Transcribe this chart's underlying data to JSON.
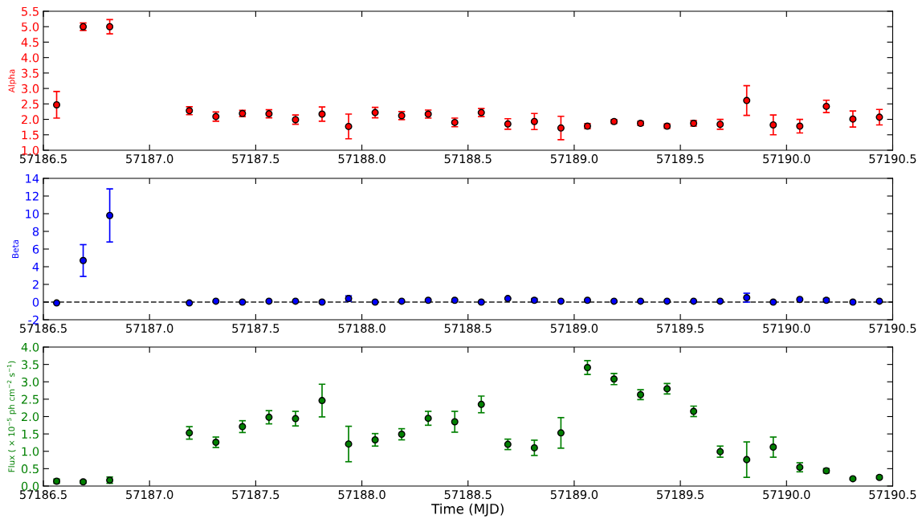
{
  "chart_data": [
    {
      "type": "scatter",
      "ylabel": "Alpha",
      "marker": "circle",
      "grid": false,
      "legend": false,
      "x": [
        57186.5625,
        57186.6875,
        57186.8125,
        57187.1875,
        57187.3125,
        57187.4375,
        57187.5625,
        57187.6875,
        57187.8125,
        57187.9375,
        57188.0625,
        57188.1875,
        57188.3125,
        57188.4375,
        57188.5625,
        57188.6875,
        57188.8125,
        57188.9375,
        57189.0625,
        57189.1875,
        57189.3125,
        57189.4375,
        57189.5625,
        57189.6875,
        57189.8125,
        57189.9375,
        57190.0625,
        57190.1875,
        57190.3125,
        57190.4375
      ],
      "series": [
        {
          "color": "#ff0000",
          "values": [
            2.47,
            5.0,
            5.0,
            2.28,
            2.09,
            2.19,
            2.18,
            1.99,
            2.17,
            1.77,
            2.22,
            2.12,
            2.17,
            1.9,
            2.22,
            1.85,
            1.93,
            1.72,
            1.78,
            1.93,
            1.87,
            1.78,
            1.87,
            1.84,
            2.61,
            1.82,
            1.78,
            2.42,
            2.01,
            2.07
          ],
          "errors": [
            0.43,
            0.12,
            0.23,
            0.13,
            0.15,
            0.1,
            0.13,
            0.15,
            0.23,
            0.4,
            0.17,
            0.13,
            0.13,
            0.14,
            0.13,
            0.17,
            0.26,
            0.38,
            0.08,
            0.06,
            0.07,
            0.07,
            0.09,
            0.16,
            0.48,
            0.32,
            0.22,
            0.2,
            0.26,
            0.25
          ]
        }
      ],
      "xlim": [
        57186.5,
        57190.5
      ],
      "xticks": [
        57186.5,
        {
          "value": 57187,
          "label": "57187.0"
        },
        57187.5,
        {
          "value": 57188,
          "label": "57188.0"
        },
        57188.5,
        {
          "value": 57189,
          "label": "57189.0"
        },
        57189.5,
        {
          "value": 57190,
          "label": "57190.0"
        },
        57190.5
      ],
      "ylim": [
        1.0,
        5.5
      ],
      "yticks": [
        {
          "value": 1,
          "label": "1.0"
        },
        1.5,
        {
          "value": 2,
          "label": "2.0"
        },
        2.5,
        {
          "value": 3,
          "label": "3.0"
        },
        3.5,
        {
          "value": 4,
          "label": "4.0"
        },
        4.5,
        {
          "value": 5,
          "label": "5.0"
        },
        5.5
      ]
    },
    {
      "type": "scatter",
      "ylabel": "Beta",
      "marker": "circle",
      "grid": false,
      "legend": false,
      "x": [
        57186.5625,
        57186.6875,
        57186.8125,
        57187.1875,
        57187.3125,
        57187.4375,
        57187.5625,
        57187.6875,
        57187.8125,
        57187.9375,
        57188.0625,
        57188.1875,
        57188.3125,
        57188.4375,
        57188.5625,
        57188.6875,
        57188.8125,
        57188.9375,
        57189.0625,
        57189.1875,
        57189.3125,
        57189.4375,
        57189.5625,
        57189.6875,
        57189.8125,
        57189.9375,
        57190.0625,
        57190.1875,
        57190.3125,
        57190.4375
      ],
      "series": [
        {
          "color": "#0000ff",
          "values": [
            -0.1,
            4.7,
            9.8,
            -0.1,
            0.1,
            0.0,
            0.1,
            0.1,
            0.0,
            0.4,
            0.0,
            0.1,
            0.2,
            0.2,
            0.0,
            0.4,
            0.2,
            0.1,
            0.2,
            0.1,
            0.1,
            0.1,
            0.1,
            0.1,
            0.5,
            0.0,
            0.3,
            0.2,
            0.0,
            0.1
          ],
          "errors": [
            null,
            1.8,
            3.0,
            null,
            null,
            null,
            null,
            null,
            null,
            0.3,
            null,
            null,
            null,
            null,
            null,
            null,
            0.2,
            null,
            null,
            null,
            null,
            null,
            null,
            null,
            0.5,
            null,
            null,
            0.2,
            null,
            null
          ]
        }
      ],
      "ref_lines": [
        {
          "axis": "y",
          "value": 0,
          "color": "#555555",
          "line_style": "dashed"
        }
      ],
      "xlim": [
        57186.5,
        57190.5
      ],
      "xticks": [
        57186.5,
        {
          "value": 57187,
          "label": "57187.0"
        },
        57187.5,
        {
          "value": 57188,
          "label": "57188.0"
        },
        57188.5,
        {
          "value": 57189,
          "label": "57189.0"
        },
        57189.5,
        {
          "value": 57190,
          "label": "57190.0"
        },
        57190.5
      ],
      "ylim": [
        -2,
        14
      ],
      "yticks": [
        -2,
        0,
        2,
        4,
        6,
        8,
        10,
        12,
        14
      ]
    },
    {
      "type": "scatter",
      "xlabel": "Time (MJD)",
      "ylabel": "Flux ( × 10$^{−5}$ ph cm$^{−2}$ s$^{−1}$)",
      "marker": "circle",
      "grid": false,
      "legend": false,
      "x": [
        57186.5625,
        57186.6875,
        57186.8125,
        57187.1875,
        57187.3125,
        57187.4375,
        57187.5625,
        57187.6875,
        57187.8125,
        57187.9375,
        57188.0625,
        57188.1875,
        57188.3125,
        57188.4375,
        57188.5625,
        57188.6875,
        57188.8125,
        57188.9375,
        57189.0625,
        57189.1875,
        57189.3125,
        57189.4375,
        57189.5625,
        57189.6875,
        57189.8125,
        57189.9375,
        57190.0625,
        57190.1875,
        57190.3125,
        57190.4375
      ],
      "series": [
        {
          "color": "#008000",
          "values": [
            0.14,
            0.12,
            0.17,
            1.53,
            1.26,
            1.71,
            1.98,
            1.94,
            2.46,
            1.21,
            1.33,
            1.49,
            1.95,
            1.85,
            2.35,
            1.2,
            1.1,
            1.53,
            3.41,
            3.08,
            2.63,
            2.8,
            2.15,
            0.99,
            0.76,
            1.12,
            0.54,
            0.44,
            0.21,
            0.25
          ],
          "errors": [
            0.06,
            0.04,
            0.09,
            0.18,
            0.15,
            0.17,
            0.19,
            0.21,
            0.47,
            0.51,
            0.18,
            0.16,
            0.2,
            0.3,
            0.24,
            0.15,
            0.22,
            0.44,
            0.2,
            0.16,
            0.14,
            0.15,
            0.15,
            0.16,
            0.51,
            0.29,
            0.13,
            0.06,
            0.03,
            0.04
          ]
        }
      ],
      "xlim": [
        57186.5,
        57190.5
      ],
      "xticks": [
        57186.5,
        {
          "value": 57187,
          "label": "57187.0"
        },
        57187.5,
        {
          "value": 57188,
          "label": "57188.0"
        },
        57188.5,
        {
          "value": 57189,
          "label": "57189.0"
        },
        57189.5,
        {
          "value": 57190,
          "label": "57190.0"
        },
        57190.5
      ],
      "ylim": [
        0.0,
        4.0
      ],
      "yticks": [
        {
          "value": 0,
          "label": "0.0"
        },
        0.5,
        {
          "value": 1,
          "label": "1.0"
        },
        1.5,
        {
          "value": 2,
          "label": "2.0"
        },
        2.5,
        {
          "value": 3,
          "label": "3.0"
        },
        3.5,
        {
          "value": 4,
          "label": "4.0"
        }
      ]
    }
  ]
}
